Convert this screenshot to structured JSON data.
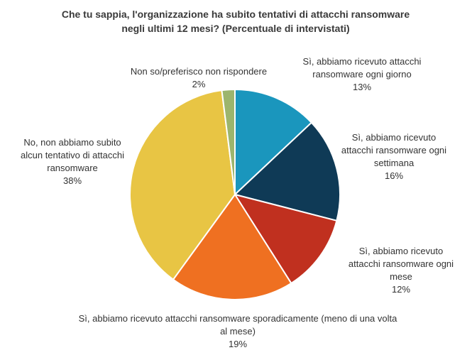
{
  "chart_data": {
    "type": "pie",
    "title": "Che tu sappia, l'organizzazione ha subito tentativi di attacchi ransomware negli ultimi 12 mesi? (Percentuale di intervistati)",
    "categories": [
      "Sì, abbiamo ricevuto attacchi ransomware ogni giorno",
      "Sì, abbiamo ricevuto attacchi ransomware ogni settimana",
      "Sì, abbiamo ricevuto attacchi ransomware ogni mese",
      "Sì, abbiamo ricevuto attacchi ransomware sporadicamente (meno di una volta al mese)",
      "No, non abbiamo subito alcun tentativo di attacchi ransomware",
      "Non so/preferisco non rispondere"
    ],
    "values": [
      13,
      16,
      12,
      19,
      38,
      2
    ],
    "value_labels": [
      "13%",
      "16%",
      "12%",
      "19%",
      "38%",
      "2%"
    ],
    "colors": [
      "#1a96bd",
      "#0f3a56",
      "#c0301f",
      "#ef7021",
      "#e8c544",
      "#9cb56d"
    ]
  }
}
